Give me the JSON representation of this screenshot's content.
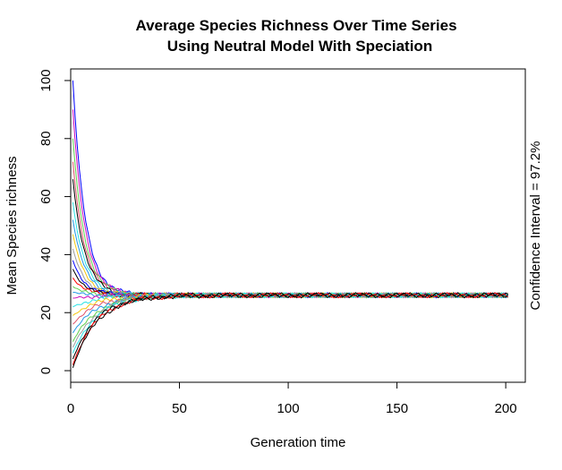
{
  "chart_data": {
    "type": "line",
    "title_lines": [
      "Average Species Richness Over Time Series",
      "Using Neutral Model With Speciation"
    ],
    "xlabel": "Generation time",
    "ylabel": "Mean Species richness",
    "right_label": "Confidence Interval = 97.2%",
    "xlim": [
      0,
      209
    ],
    "ylim": [
      -4,
      104
    ],
    "x_ticks": [
      0,
      50,
      100,
      150,
      200
    ],
    "y_ticks": [
      0,
      20,
      40,
      60,
      80,
      100
    ],
    "x_range": [
      1,
      201
    ],
    "equilibrium_richness": 26,
    "series_colors": [
      "#000000",
      "#df536b",
      "#61d04f",
      "#2297e6",
      "#28e2e5",
      "#cd0bbc",
      "#f5c710",
      "#9e9e9e",
      "#0000ff",
      "#ff0000"
    ],
    "series": [
      {
        "start": 100,
        "color": "#0000ff"
      },
      {
        "start": 90,
        "color": "#cd0bbc"
      },
      {
        "start": 80,
        "color": "#61d04f"
      },
      {
        "start": 72,
        "color": "#df536b"
      },
      {
        "start": 66,
        "color": "#000000"
      },
      {
        "start": 58,
        "color": "#28e2e5"
      },
      {
        "start": 52,
        "color": "#2297e6"
      },
      {
        "start": 47,
        "color": "#f5c710"
      },
      {
        "start": 42,
        "color": "#9e9e9e"
      },
      {
        "start": 38,
        "color": "#0000ff"
      },
      {
        "start": 35,
        "color": "#000000"
      },
      {
        "start": 32,
        "color": "#ff0000"
      },
      {
        "start": 29,
        "color": "#61d04f"
      },
      {
        "start": 27,
        "color": "#2297e6"
      },
      {
        "start": 25,
        "color": "#cd0bbc"
      },
      {
        "start": 22,
        "color": "#28e2e5"
      },
      {
        "start": 19,
        "color": "#f5c710"
      },
      {
        "start": 16,
        "color": "#df536b"
      },
      {
        "start": 13,
        "color": "#2297e6"
      },
      {
        "start": 10,
        "color": "#61d04f"
      },
      {
        "start": 8,
        "color": "#9e9e9e"
      },
      {
        "start": 6,
        "color": "#28e2e5"
      },
      {
        "start": 4,
        "color": "#000000"
      },
      {
        "start": 2,
        "color": "#ff0000"
      },
      {
        "start": 1,
        "color": "#000000"
      }
    ]
  }
}
